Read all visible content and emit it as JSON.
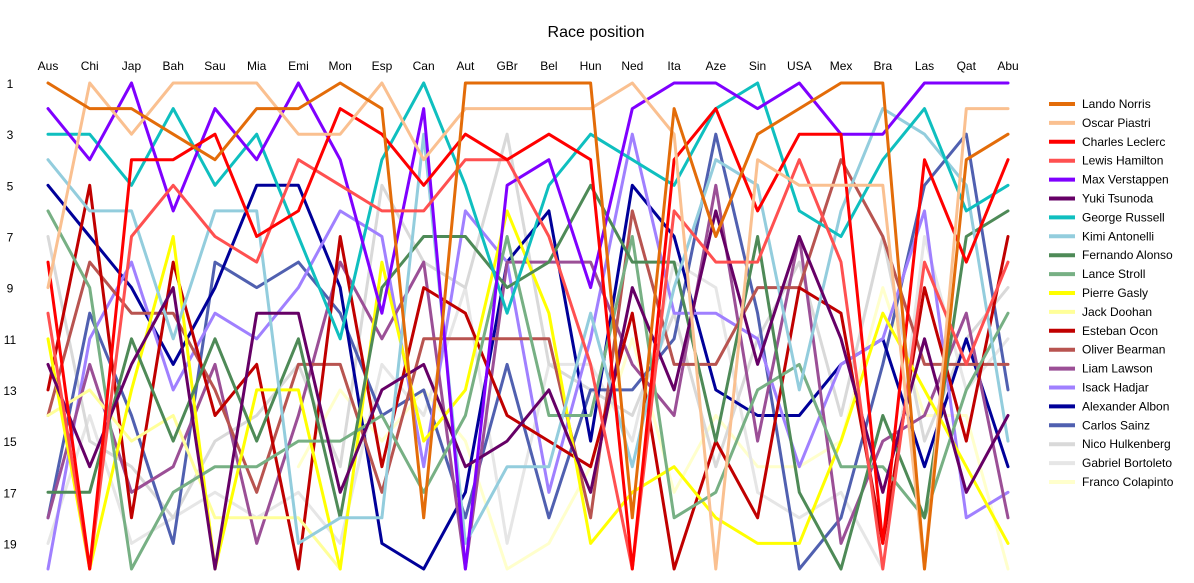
{
  "chart_data": {
    "type": "line",
    "title": "Race position",
    "xlabel": "",
    "ylabel": "",
    "categories": [
      "Aus",
      "Chi",
      "Jap",
      "Bah",
      "Sau",
      "Mia",
      "Emi",
      "Mon",
      "Esp",
      "Can",
      "Aut",
      "GBr",
      "Bel",
      "Hun",
      "Ned",
      "Ita",
      "Aze",
      "Sin",
      "USA",
      "Mex",
      "Bra",
      "Las",
      "Qat",
      "Abu"
    ],
    "ylim": [
      1,
      20
    ],
    "y_reversed": true,
    "yticks": [
      1,
      3,
      5,
      7,
      9,
      11,
      13,
      15,
      17,
      19
    ],
    "grid": false,
    "legend_position": "right",
    "series": [
      {
        "name": "Lando Norris",
        "color": "#e36c09",
        "values": [
          1,
          2,
          2,
          3,
          4,
          2,
          2,
          1,
          2,
          18,
          1,
          1,
          1,
          1,
          18,
          2,
          7,
          3,
          2,
          1,
          1,
          20,
          4,
          3
        ]
      },
      {
        "name": "Oscar Piastri",
        "color": "#fac090",
        "values": [
          9,
          1,
          3,
          1,
          1,
          1,
          3,
          3,
          1,
          4,
          2,
          2,
          2,
          2,
          1,
          3,
          20,
          4,
          5,
          5,
          5,
          20,
          2,
          2
        ]
      },
      {
        "name": "Charles Leclerc",
        "color": "#ff0000",
        "values": [
          8,
          20,
          4,
          4,
          3,
          7,
          6,
          2,
          3,
          5,
          3,
          4,
          3,
          4,
          20,
          4,
          2,
          6,
          3,
          3,
          19,
          4,
          8,
          4
        ]
      },
      {
        "name": "Lewis Hamilton",
        "color": "#ff5050",
        "values": [
          10,
          20,
          7,
          5,
          7,
          8,
          4,
          5,
          6,
          6,
          4,
          4,
          7,
          12,
          20,
          6,
          8,
          8,
          4,
          8,
          20,
          8,
          12,
          8
        ]
      },
      {
        "name": "Max Verstappen",
        "color": "#7f00ff",
        "values": [
          2,
          4,
          1,
          6,
          2,
          4,
          1,
          4,
          10,
          2,
          20,
          5,
          4,
          9,
          2,
          1,
          1,
          2,
          1,
          3,
          3,
          1,
          1,
          1
        ]
      },
      {
        "name": "Yuki Tsunoda",
        "color": "#660066",
        "values": [
          12,
          16,
          12,
          9,
          20,
          10,
          10,
          17,
          13,
          12,
          16,
          15,
          13,
          17,
          9,
          13,
          6,
          12,
          7,
          11,
          17,
          11,
          17,
          14
        ]
      },
      {
        "name": "George Russell",
        "color": "#0fbfbf",
        "values": [
          3,
          3,
          5,
          2,
          5,
          3,
          7,
          11,
          4,
          1,
          5,
          10,
          5,
          3,
          4,
          5,
          2,
          1,
          6,
          7,
          4,
          2,
          6,
          5
        ]
      },
      {
        "name": "Kimi Antonelli",
        "color": "#93cddd",
        "values": [
          4,
          6,
          6,
          11,
          6,
          6,
          19,
          18,
          18,
          3,
          19,
          16,
          16,
          10,
          16,
          9,
          4,
          5,
          13,
          6,
          2,
          3,
          5,
          15
        ]
      },
      {
        "name": "Fernando Alonso",
        "color": "#4e8a57",
        "values": [
          17,
          17,
          11,
          15,
          11,
          15,
          11,
          18,
          9,
          7,
          7,
          9,
          8,
          5,
          8,
          8,
          15,
          7,
          17,
          20,
          14,
          18,
          7,
          6
        ]
      },
      {
        "name": "Lance Stroll",
        "color": "#77b084",
        "values": [
          6,
          9,
          20,
          17,
          16,
          16,
          15,
          15,
          14,
          17,
          14,
          7,
          14,
          14,
          7,
          18,
          17,
          13,
          12,
          16,
          16,
          18,
          13,
          10
        ]
      },
      {
        "name": "Pierre Gasly",
        "color": "#ffff00",
        "values": [
          11,
          20,
          13,
          7,
          20,
          13,
          13,
          20,
          8,
          15,
          13,
          6,
          10,
          19,
          17,
          16,
          18,
          19,
          19,
          15,
          10,
          13,
          16,
          19
        ]
      },
      {
        "name": "Jack Doohan",
        "color": "#ffff99",
        "values": [
          14,
          13,
          15,
          14,
          18,
          18,
          18,
          20,
          null,
          null,
          null,
          null,
          null,
          null,
          null,
          null,
          null,
          null,
          null,
          null,
          null,
          null,
          null,
          null
        ]
      },
      {
        "name": "Esteban Ocon",
        "color": "#c00000",
        "values": [
          13,
          5,
          18,
          8,
          14,
          12,
          20,
          7,
          16,
          9,
          10,
          14,
          15,
          16,
          10,
          20,
          15,
          18,
          9,
          10,
          19,
          9,
          15,
          7
        ]
      },
      {
        "name": "Oliver Bearman",
        "color": "#b85450",
        "values": [
          14,
          8,
          10,
          10,
          13,
          17,
          12,
          12,
          17,
          11,
          11,
          11,
          11,
          18,
          6,
          12,
          12,
          9,
          9,
          4,
          7,
          12,
          12,
          12
        ]
      },
      {
        "name": "Liam Lawson",
        "color": "#9b4f96",
        "values": [
          18,
          12,
          17,
          16,
          12,
          19,
          14,
          8,
          11,
          8,
          20,
          8,
          8,
          8,
          12,
          14,
          5,
          15,
          7,
          19,
          15,
          14,
          10,
          18
        ]
      },
      {
        "name": "Isack Hadjar",
        "color": "#a080ff",
        "values": [
          20,
          11,
          8,
          13,
          10,
          11,
          9,
          6,
          7,
          16,
          6,
          8,
          17,
          11,
          3,
          10,
          10,
          11,
          16,
          12,
          11,
          6,
          18,
          17
        ]
      },
      {
        "name": "Alexander Albon",
        "color": "#000099",
        "values": [
          5,
          7,
          9,
          12,
          9,
          5,
          5,
          9,
          19,
          20,
          17,
          8,
          6,
          15,
          5,
          7,
          13,
          14,
          14,
          12,
          11,
          16,
          11,
          16
        ]
      },
      {
        "name": "Carlos Sainz",
        "color": "#5060b0",
        "values": [
          18,
          10,
          14,
          19,
          8,
          9,
          8,
          10,
          14,
          13,
          18,
          12,
          18,
          13,
          13,
          11,
          3,
          10,
          20,
          18,
          12,
          5,
          3,
          13
        ]
      },
      {
        "name": "Nico Hulkenberg",
        "color": "#d9d9d9",
        "values": [
          7,
          15,
          16,
          18,
          15,
          14,
          12,
          16,
          5,
          8,
          9,
          3,
          12,
          13,
          14,
          10,
          16,
          11,
          8,
          14,
          7,
          15,
          11,
          9
        ]
      },
      {
        "name": "Gabriel Bortoleto",
        "color": "#e6e6e6",
        "values": [
          19,
          14,
          19,
          18,
          17,
          18,
          17,
          19,
          12,
          14,
          9,
          19,
          12,
          12,
          15,
          8,
          9,
          17,
          18,
          17,
          20,
          7,
          13,
          11
        ]
      },
      {
        "name": "Franco Colapinto",
        "color": "#ffffcc",
        "values": [
          null,
          null,
          null,
          null,
          null,
          null,
          16,
          13,
          15,
          13,
          15,
          20,
          19,
          16,
          11,
          17,
          14,
          16,
          16,
          15,
          9,
          14,
          14,
          20
        ]
      }
    ]
  }
}
